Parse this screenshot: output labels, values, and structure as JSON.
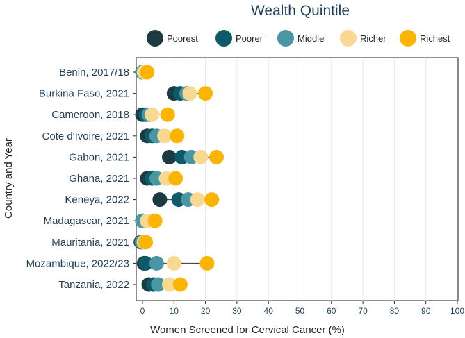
{
  "chart_data": {
    "type": "scatter",
    "subtype": "dot-plot",
    "title": "Wealth Quintile",
    "xlabel": "Women Screened for Cervical Cancer (%)",
    "ylabel": "Country and Year",
    "xlim": [
      0,
      100
    ],
    "xticks": [
      0,
      10,
      20,
      30,
      40,
      50,
      60,
      70,
      80,
      90,
      100
    ],
    "legend_position": "top",
    "categories": [
      "Benin, 2017/18",
      "Burkina Faso, 2021",
      "Cameroon, 2018",
      "Cote d'Ivoire, 2021",
      "Gabon, 2021",
      "Ghana, 2021",
      "Keneya, 2022",
      "Madagascar, 2021",
      "Mauritania, 2021",
      "Mozambique, 2022/23",
      "Tanzania, 2022"
    ],
    "series": [
      {
        "name": "Poorest",
        "color": "#1b3a42",
        "values": [
          0,
          10,
          0,
          1.5,
          8.5,
          1.5,
          5.5,
          0,
          -0.5,
          0.5,
          2
        ]
      },
      {
        "name": "Poorer",
        "color": "#0d5a6a",
        "values": [
          0,
          12,
          1,
          3,
          12.5,
          3,
          11.5,
          0,
          0,
          1,
          3.5
        ]
      },
      {
        "name": "Middle",
        "color": "#4a96a3",
        "values": [
          0,
          14,
          2,
          4.5,
          15.5,
          4.5,
          14.5,
          0,
          -0.2,
          4.5,
          5
        ]
      },
      {
        "name": "Richer",
        "color": "#f9d992",
        "values": [
          0.5,
          15,
          3,
          7,
          18.5,
          7.5,
          17.5,
          1.5,
          0.5,
          10,
          8.5
        ]
      },
      {
        "name": "Richest",
        "color": "#fbb400",
        "values": [
          1.5,
          20,
          8,
          11,
          23.5,
          10.5,
          22,
          4,
          1,
          20.5,
          12
        ]
      }
    ]
  }
}
